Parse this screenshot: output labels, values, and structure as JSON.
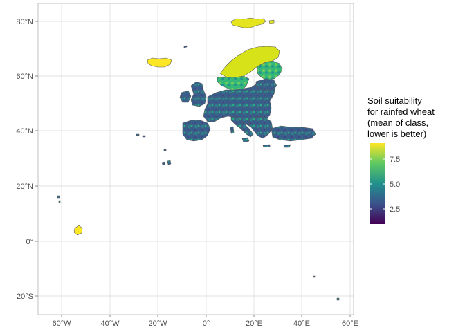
{
  "map": {
    "x_axis_labels": [
      "60°W",
      "40°W",
      "20°W",
      "0°",
      "20°E",
      "40°E",
      "60°E"
    ],
    "y_axis_labels": [
      "80°N",
      "60°N",
      "40°N",
      "20°N",
      "0°",
      "20°S"
    ],
    "x_ticks": [
      -60,
      -40,
      -20,
      0,
      20,
      40,
      60
    ],
    "y_ticks": [
      80,
      60,
      40,
      20,
      0,
      -20
    ],
    "lon_range": [
      -68,
      63
    ],
    "lat_range": [
      -26,
      86
    ],
    "grid": true,
    "border_color": "#595959",
    "legend": {
      "title_lines": [
        "Soil suitability",
        "for rainfed wheat",
        "(mean of class,",
        "lower is better)"
      ],
      "tick_labels": [
        "7.5",
        "5.0",
        "2.5"
      ],
      "tick_values": [
        7.5,
        5.0,
        2.5
      ],
      "range": [
        1,
        9
      ],
      "colors": [
        "#440154",
        "#3b528b",
        "#21908c",
        "#5dc863",
        "#fde725"
      ],
      "placement": "right"
    }
  }
}
